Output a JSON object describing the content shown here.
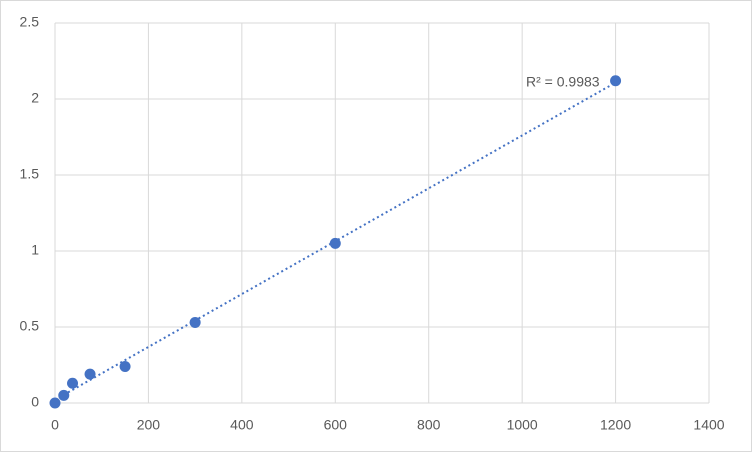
{
  "chart_data": {
    "type": "scatter",
    "x": [
      0,
      18.75,
      37.5,
      75,
      150,
      300,
      600,
      1200
    ],
    "series": [
      {
        "color": "#4472c4",
        "values": [
          0,
          0.05,
          0.13,
          0.19,
          0.24,
          0.53,
          1.05,
          2.12
        ]
      }
    ],
    "xlim": [
      0,
      1400
    ],
    "xticks": [
      0,
      200,
      400,
      600,
      800,
      1000,
      1200,
      1400
    ],
    "ylim": [
      0,
      2.5
    ],
    "yticks": [
      0,
      0.5,
      1,
      1.5,
      2,
      2.5
    ],
    "grid": true,
    "trendline": "linear",
    "annotation": "R² = 0.9983"
  }
}
